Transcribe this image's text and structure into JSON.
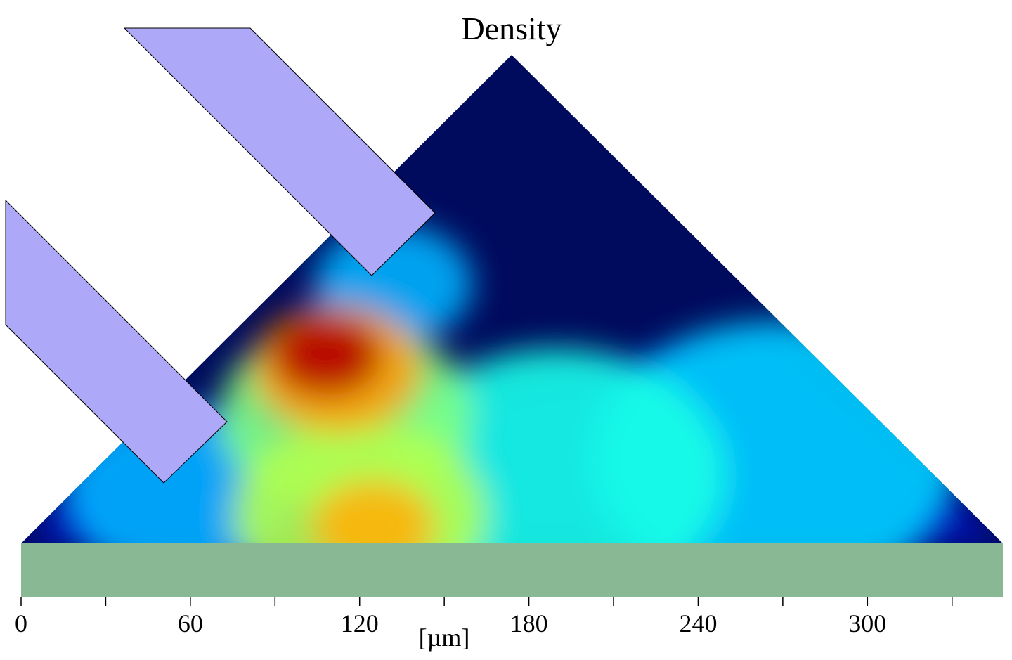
{
  "chart_data": {
    "type": "heatmap",
    "title": "Density",
    "xlabel": "[µm]",
    "xlim": [
      0,
      348
    ],
    "major_ticks": [
      0,
      60,
      120,
      180,
      240,
      300
    ],
    "tick_labels": [
      "0",
      "60",
      "120",
      "180",
      "240",
      "300"
    ],
    "minor_ticks": [
      30,
      90,
      150,
      210,
      270,
      330
    ],
    "colormap": "jet",
    "domain_shape": "triangle",
    "domain": {
      "base_from": 0,
      "base_to": 348,
      "apex_x": 174,
      "apex_height": 173
    },
    "hotspots": [
      {
        "x": 55,
        "h": 18,
        "r": 40,
        "value": 0.3
      },
      {
        "x": 132,
        "h": 92,
        "r": 28,
        "value": 0.3
      },
      {
        "x": 267,
        "h": 30,
        "r": 65,
        "value": 0.33
      },
      {
        "x": 190,
        "h": 24,
        "r": 60,
        "value": 0.4
      },
      {
        "x": 115,
        "h": 45,
        "r": 45,
        "value": 0.5
      },
      {
        "x": 120,
        "h": 10,
        "r": 45,
        "value": 0.55
      },
      {
        "x": 125,
        "h": 6,
        "r": 22,
        "value": 0.7
      },
      {
        "x": 112,
        "h": 62,
        "r": 30,
        "value": 0.72
      },
      {
        "x": 108,
        "h": 67,
        "r": 20,
        "value": 0.95
      }
    ],
    "colors": {
      "background_density": "#000b5e",
      "substrate": "#88b894",
      "obstacle": "#aea8f8"
    }
  }
}
